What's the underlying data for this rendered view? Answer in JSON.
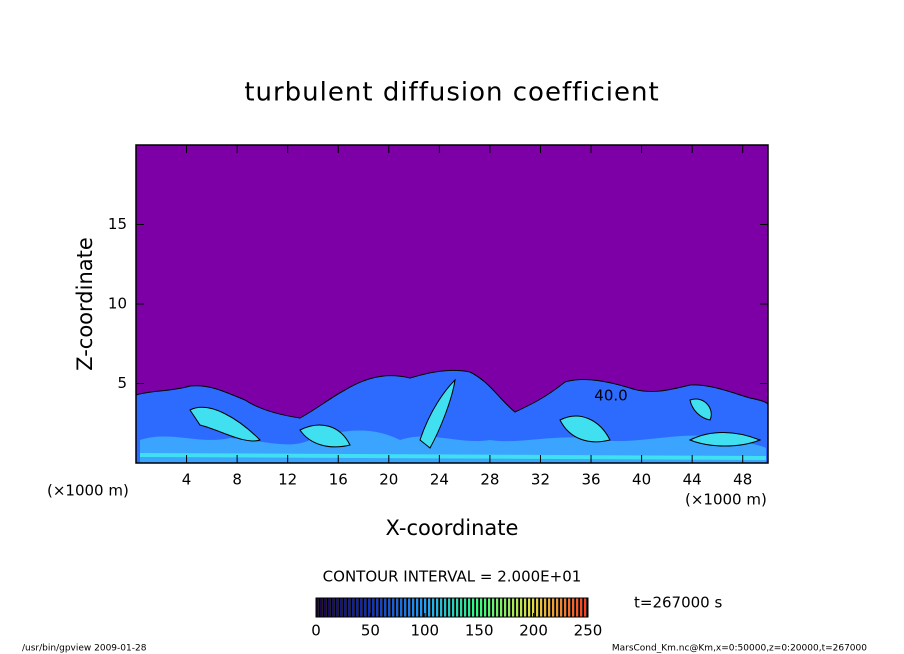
{
  "chart_data": {
    "type": "contour",
    "title": "turbulent diffusion coefficient",
    "x_label": "X-coordinate",
    "y_label": "Z-coordinate",
    "x_unit_labels": [
      "(×1000 m)",
      "(×1000 m)"
    ],
    "xlim": [
      0,
      50
    ],
    "xticks": [
      4,
      8,
      12,
      16,
      20,
      24,
      28,
      32,
      36,
      40,
      44,
      48
    ],
    "ylim": [
      0,
      20
    ],
    "yticks": [
      5,
      10,
      15
    ],
    "field_color": "#7c00a6",
    "annotation": "40.0",
    "contour_interval": "CONTOUR INTERVAL = 2.000E+01",
    "time_label": "t=267000 s",
    "colorbar": {
      "lim": [
        0,
        250
      ],
      "ticks": [
        0,
        50,
        100,
        150,
        200,
        250
      ],
      "colormap": [
        "#1a0040",
        "#1030c0",
        "#20a0ff",
        "#30ff80",
        "#e0e040",
        "#ff4020"
      ]
    },
    "footer_left": "/usr/bin/gpview  2009-01-28",
    "footer_right": "MarsCond_Km.nc@Km,x=0:50000,z=0:20000,t=267000"
  }
}
